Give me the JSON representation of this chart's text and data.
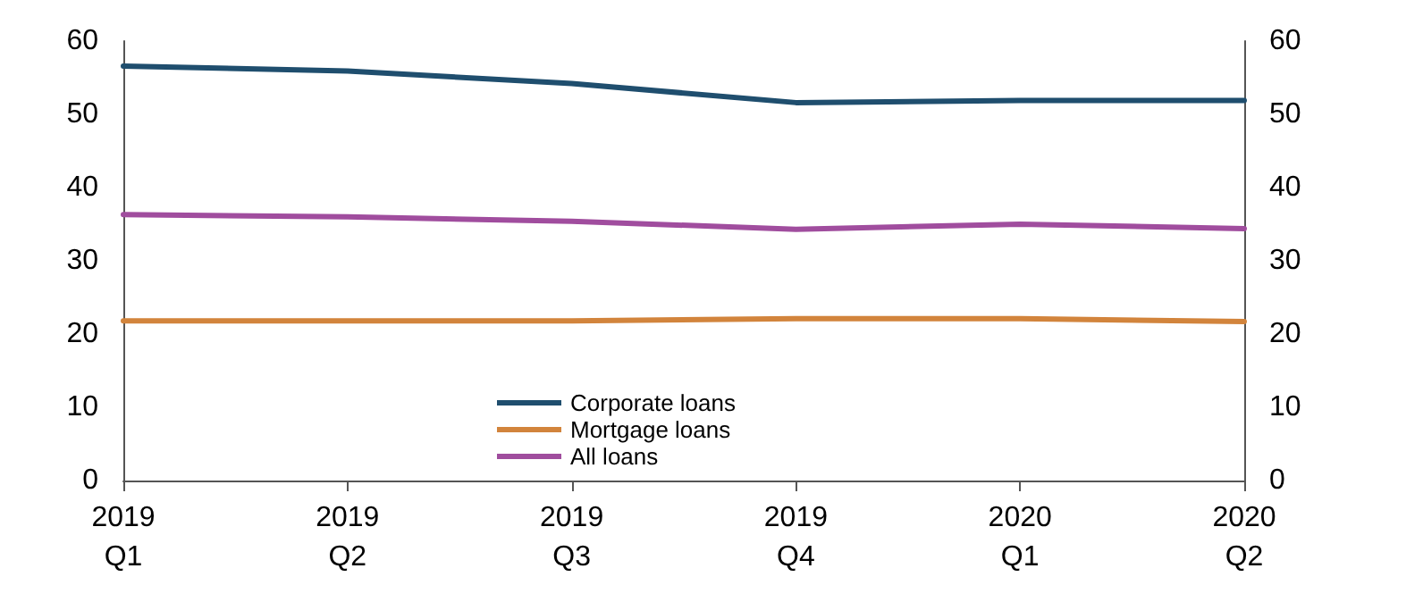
{
  "chart_data": {
    "type": "line",
    "categories": [
      "2019\nQ1",
      "2019\nQ2",
      "2019\nQ3",
      "2019\nQ4",
      "2020\nQ1",
      "2020\nQ2"
    ],
    "series": [
      {
        "name": "Corporate loans",
        "color": "#1f4e6e",
        "values": [
          56.6,
          55.9,
          54.2,
          51.6,
          51.9,
          51.9
        ]
      },
      {
        "name": "Mortgage loans",
        "color": "#d2843c",
        "values": [
          21.8,
          21.8,
          21.8,
          22.1,
          22.1,
          21.7
        ]
      },
      {
        "name": "All loans",
        "color": "#a04d9e",
        "values": [
          36.3,
          36.0,
          35.4,
          34.3,
          35.0,
          34.4
        ]
      }
    ],
    "ylim": [
      0,
      60
    ],
    "yticks": [
      0,
      10,
      20,
      30,
      40,
      50,
      60
    ],
    "y2lim": [
      0,
      60
    ],
    "y2ticks": [
      0,
      10,
      20,
      30,
      40,
      50,
      60
    ],
    "grid": false,
    "legend": "bottom left",
    "marker": "none",
    "line_style": "solid"
  }
}
